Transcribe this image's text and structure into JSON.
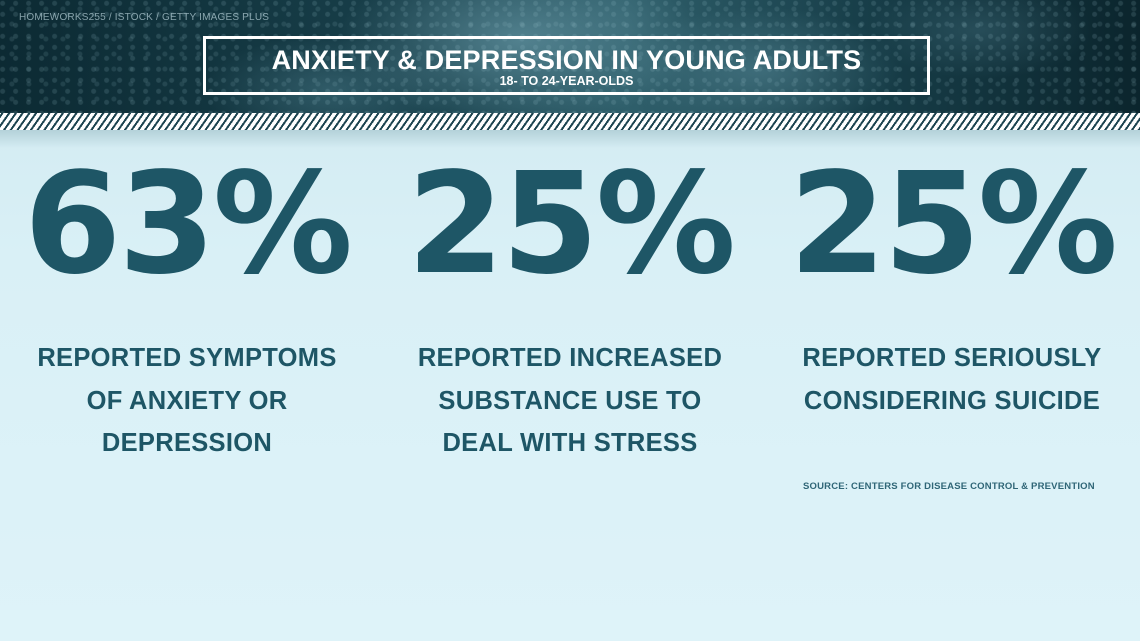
{
  "header": {
    "credit": "HOMEWORKS255 / ISTOCK / GETTY IMAGES PLUS",
    "title": "ANXIETY & DEPRESSION IN YOUNG ADULTS",
    "subtitle": "18- TO 24-YEAR-OLDS"
  },
  "stats": [
    {
      "value": "63%",
      "lines": [
        "REPORTED SYMPTOMS",
        "OF ANXIETY OR",
        "DEPRESSION"
      ]
    },
    {
      "value": "25%",
      "lines": [
        "REPORTED INCREASED",
        "SUBSTANCE USE TO",
        "DEAL WITH STRESS"
      ]
    },
    {
      "value": "25%",
      "lines": [
        "REPORTED SERIOUSLY",
        "CONSIDERING SUICIDE"
      ]
    }
  ],
  "source": "SOURCE: CENTERS FOR DISEASE CONTROL & PREVENTION",
  "colors": {
    "accent": "#1e5666",
    "header_dark": "#0c2a33",
    "background": "#d9f0f6",
    "title_text": "#ffffff"
  }
}
